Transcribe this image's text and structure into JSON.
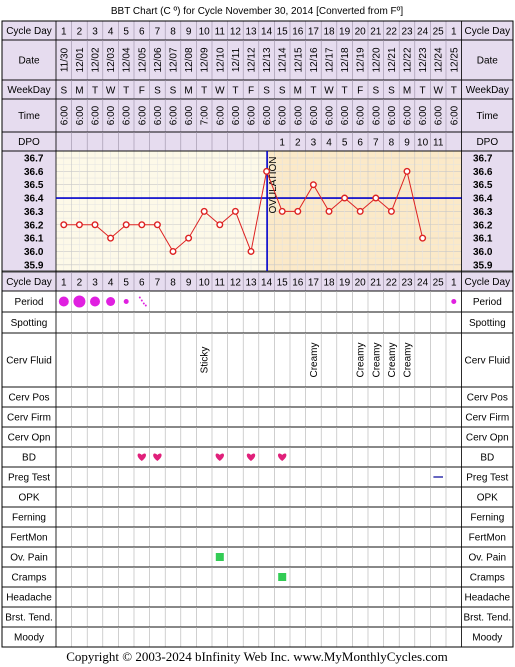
{
  "title": "BBT Chart (C º) for Cycle November 30, 2014  [Converted from Fº]",
  "copyright": "Copyright © 2003-2024 bInfinity Web Inc.    www.MyMonthlyCycles.com",
  "row_labels": {
    "cycle_day": "Cycle Day",
    "date": "Date",
    "weekday": "WeekDay",
    "time": "Time",
    "dpo": "DPO",
    "period": "Period",
    "spotting": "Spotting",
    "cerv_fluid": "Cerv Fluid",
    "cerv_pos": "Cerv Pos",
    "cerv_firm": "Cerv Firm",
    "cerv_opn": "Cerv Opn",
    "bd": "BD",
    "preg_test": "Preg Test",
    "opk": "OPK",
    "ferning": "Ferning",
    "fertmon": "FertMon",
    "ov_pain": "Ov. Pain",
    "cramps": "Cramps",
    "headache": "Headache",
    "brst_tend": "Brst. Tend.",
    "moody": "Moody"
  },
  "columns": {
    "cycle_days": [
      "1",
      "2",
      "3",
      "4",
      "5",
      "6",
      "7",
      "8",
      "9",
      "10",
      "11",
      "12",
      "13",
      "14",
      "15",
      "16",
      "17",
      "18",
      "19",
      "20",
      "21",
      "22",
      "23",
      "24",
      "25",
      "1"
    ],
    "dates": [
      "11/30",
      "12/01",
      "12/02",
      "12/03",
      "12/04",
      "12/05",
      "12/06",
      "12/07",
      "12/08",
      "12/09",
      "12/10",
      "12/11",
      "12/12",
      "12/13",
      "12/14",
      "12/15",
      "12/16",
      "12/17",
      "12/18",
      "12/19",
      "12/20",
      "12/21",
      "12/22",
      "12/23",
      "12/24",
      "12/25"
    ],
    "weekdays": [
      "S",
      "M",
      "T",
      "W",
      "T",
      "F",
      "S",
      "S",
      "M",
      "T",
      "W",
      "T",
      "F",
      "S",
      "S",
      "M",
      "T",
      "W",
      "T",
      "F",
      "S",
      "S",
      "M",
      "T",
      "W",
      "T"
    ],
    "times": [
      "6:00",
      "6:00",
      "6:00",
      "6:00",
      "6:00",
      "6:00",
      "6:00",
      "6:00",
      "6:00",
      "7:00",
      "6:00",
      "6:00",
      "6:00",
      "6:00",
      "6:00",
      "6:00",
      "6:00",
      "6:00",
      "6:00",
      "6:00",
      "6:00",
      "6:00",
      "6:00",
      "6:00",
      "6:00",
      "6:00"
    ],
    "dpo": [
      "",
      "",
      "",
      "",
      "",
      "",
      "",
      "",
      "",
      "",
      "",
      "",
      "",
      "",
      "1",
      "2",
      "3",
      "4",
      "5",
      "6",
      "7",
      "8",
      "9",
      "10",
      "11",
      ""
    ]
  },
  "cerv_fluid_entries": [
    "",
    "",
    "",
    "",
    "",
    "",
    "",
    "",
    "",
    "Sticky",
    "",
    "",
    "",
    "",
    "",
    "",
    "Creamy",
    "",
    "",
    "Creamy",
    "Creamy",
    "Creamy",
    "Creamy",
    "",
    "",
    ""
  ],
  "period_marks": [
    "heavy",
    "heavier",
    "heavy",
    "medium",
    "light",
    "spotting",
    "",
    "",
    "",
    "",
    "",
    "",
    "",
    "",
    "",
    "",
    "",
    "",
    "",
    "",
    "",
    "",
    "",
    "",
    "",
    "light"
  ],
  "bd_marks": [
    false,
    false,
    false,
    false,
    false,
    true,
    true,
    false,
    false,
    false,
    true,
    false,
    true,
    false,
    true,
    false,
    false,
    false,
    false,
    false,
    false,
    false,
    false,
    false,
    false,
    false
  ],
  "preg_test_marks": [
    "",
    "",
    "",
    "",
    "",
    "",
    "",
    "",
    "",
    "",
    "",
    "",
    "",
    "",
    "",
    "",
    "",
    "",
    "",
    "",
    "",
    "",
    "",
    "",
    "negative",
    ""
  ],
  "ov_pain_marks": [
    false,
    false,
    false,
    false,
    false,
    false,
    false,
    false,
    false,
    false,
    true,
    false,
    false,
    false,
    false,
    false,
    false,
    false,
    false,
    false,
    false,
    false,
    false,
    false,
    false,
    false
  ],
  "cramps_marks": [
    false,
    false,
    false,
    false,
    false,
    false,
    false,
    false,
    false,
    false,
    false,
    false,
    false,
    false,
    true,
    false,
    false,
    false,
    false,
    false,
    false,
    false,
    false,
    false,
    false,
    false
  ],
  "chart_data": {
    "type": "line",
    "x": [
      "1",
      "2",
      "3",
      "4",
      "5",
      "6",
      "7",
      "8",
      "9",
      "10",
      "11",
      "12",
      "13",
      "14",
      "15",
      "16",
      "17",
      "18",
      "19",
      "20",
      "21",
      "22",
      "23",
      "24",
      "25"
    ],
    "values": [
      36.2,
      36.2,
      36.2,
      36.1,
      36.2,
      36.2,
      36.2,
      36.0,
      36.1,
      36.3,
      36.2,
      36.3,
      36.0,
      36.6,
      36.3,
      36.3,
      36.5,
      36.3,
      36.4,
      36.3,
      36.4,
      36.3,
      36.6,
      36.1,
      null
    ],
    "y_ticks": [
      "36.7",
      "36.6",
      "36.5",
      "36.4",
      "36.3",
      "36.2",
      "36.1",
      "36.0",
      "35.9"
    ],
    "ylim": [
      35.9,
      36.7
    ],
    "coverline": 36.4,
    "ovulation_day": 14,
    "ovulation_label": "OVULATION",
    "line_color": "#dd2222",
    "coverline_color": "#0000cc",
    "ovulation_line_color": "#0000cc",
    "pre_ov_bg": "#fdf9e8",
    "post_ov_bg": "#fbe9c8",
    "grid": true
  },
  "colors": {
    "header_bg": "#e6dcef",
    "border": "#000000",
    "grid_line": "#c8c8c8",
    "period_color": "#e020e0",
    "bd_color": "#e0207a",
    "ov_pain_color": "#33cc55",
    "preg_test_color": "#3333aa"
  }
}
